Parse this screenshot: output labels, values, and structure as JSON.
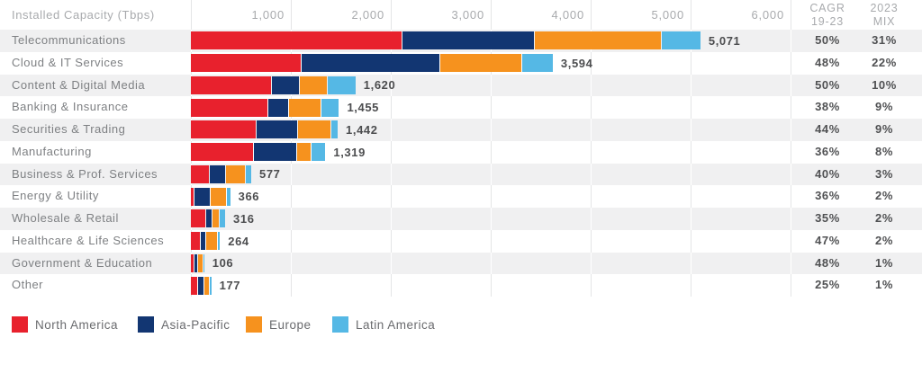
{
  "title": "Installed Capacity (Tbps)",
  "columns": {
    "cagr_line1": "CAGR",
    "cagr_line2": "19-23",
    "mix_line1": "2023",
    "mix_line2": "MIX"
  },
  "legend": [
    {
      "label": "North America",
      "color": "#e8212d"
    },
    {
      "label": "Asia-Pacific",
      "color": "#123672"
    },
    {
      "label": "Europe",
      "color": "#f6921e"
    },
    {
      "label": "Latin America",
      "color": "#55b8e5"
    }
  ],
  "chart_data": {
    "type": "bar",
    "stacked": true,
    "orientation": "horizontal",
    "unit": "Tbps",
    "title": "Installed Capacity (Tbps)",
    "xlim": [
      0,
      6000
    ],
    "grid": true,
    "legend_position": "bottom",
    "series_names": [
      "North America",
      "Asia-Pacific",
      "Europe",
      "Latin America"
    ],
    "ticks": [
      {
        "value": 1000,
        "label": "1,000"
      },
      {
        "value": 2000,
        "label": "2,000"
      },
      {
        "value": 3000,
        "label": "3,000"
      },
      {
        "value": 4000,
        "label": "4,000"
      },
      {
        "value": 5000,
        "label": "5,000"
      },
      {
        "value": 6000,
        "label": "6,000"
      }
    ],
    "rows": [
      {
        "label": "Telecommunications",
        "values": [
          2110,
          1310,
          1265,
          386
        ],
        "total": 5071,
        "total_label": "5,071",
        "cagr": "50%",
        "mix": "31%"
      },
      {
        "label": "Cloud & IT Services",
        "values": [
          1095,
          1385,
          806,
          308
        ],
        "total": 3594,
        "total_label": "3,594",
        "cagr": "48%",
        "mix": "22%"
      },
      {
        "label": "Content & Digital Media",
        "values": [
          800,
          270,
          272,
          278
        ],
        "total": 1620,
        "total_label": "1,620",
        "cagr": "50%",
        "mix": "10%"
      },
      {
        "label": "Banking & Insurance",
        "values": [
          770,
          198,
          307,
          180
        ],
        "total": 1455,
        "total_label": "1,455",
        "cagr": "38%",
        "mix": "9%"
      },
      {
        "label": "Securities & Trading",
        "values": [
          648,
          402,
          328,
          64
        ],
        "total": 1442,
        "total_label": "1,442",
        "cagr": "44%",
        "mix": "9%"
      },
      {
        "label": "Manufacturing",
        "values": [
          618,
          427,
          137,
          137
        ],
        "total": 1319,
        "total_label": "1,319",
        "cagr": "36%",
        "mix": "8%"
      },
      {
        "label": "Business & Prof. Services",
        "values": [
          180,
          152,
          193,
          52
        ],
        "total": 577,
        "total_label": "577",
        "cagr": "40%",
        "mix": "3%"
      },
      {
        "label": "Energy & Utility",
        "values": [
          30,
          148,
          158,
          30
        ],
        "total": 366,
        "total_label": "366",
        "cagr": "36%",
        "mix": "2%"
      },
      {
        "label": "Wholesale & Retail",
        "values": [
          140,
          55,
          65,
          56
        ],
        "total": 316,
        "total_label": "316",
        "cagr": "35%",
        "mix": "2%"
      },
      {
        "label": "Healthcare & Life Sciences",
        "values": [
          90,
          46,
          109,
          19
        ],
        "total": 264,
        "total_label": "264",
        "cagr": "47%",
        "mix": "2%"
      },
      {
        "label": "Government & Education",
        "values": [
          30,
          27,
          39,
          10
        ],
        "total": 106,
        "total_label": "106",
        "cagr": "48%",
        "mix": "1%"
      },
      {
        "label": "Other",
        "values": [
          61,
          57,
          42,
          17
        ],
        "total": 177,
        "total_label": "177",
        "cagr": "25%",
        "mix": "1%"
      }
    ]
  }
}
